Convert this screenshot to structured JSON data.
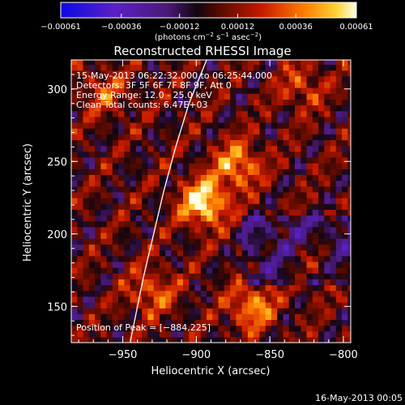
{
  "chart_data": {
    "type": "heatmap",
    "title": "Reconstructed RHESSI Image",
    "xlabel": "Heliocentric X (arcsec)",
    "ylabel": "Heliocentric Y (arcsec)",
    "xlim": [
      -985,
      -795
    ],
    "ylim": [
      125,
      320
    ],
    "x_ticks": [
      -950,
      -900,
      -850,
      -800
    ],
    "y_ticks": [
      150,
      200,
      250,
      300
    ],
    "x_tick_labels": [
      "−950",
      "−900",
      "−850",
      "−800"
    ],
    "y_tick_labels": [
      "150",
      "200",
      "250",
      "300"
    ],
    "colorbar": {
      "range": [
        -0.00061,
        0.00061
      ],
      "ticks": [
        -0.00061,
        -0.00036,
        -0.00012,
        0.00012,
        0.00036,
        0.00061
      ],
      "tick_labels": [
        "−0.00061",
        "−0.00036",
        "−0.00012",
        "0.00012",
        "0.00036",
        "0.00061"
      ],
      "unit_prefix": "(photons cm",
      "unit_exp1": "−2",
      "unit_mid": " s",
      "unit_exp2": "−1",
      "unit_mid2": " asec",
      "unit_exp3": "−2",
      "unit_suffix": ")"
    },
    "annotations": [
      "15‑May‑2013 06:22:32.000 to 06:25:44.000",
      "Detectors: 3F 5F 6F 7F 8F 9F, Att 0",
      "Energy Range: 12.0 ‑ 25.0 keV",
      "Clean    Total counts: 6.47E+03"
    ],
    "peak_label": "Position of Peak = [−884,225]",
    "peak": {
      "x": -884,
      "y": 225
    },
    "hot_spots": [
      {
        "x": -895,
        "y": 222,
        "value": 0.00061
      },
      {
        "x": -872,
        "y": 248,
        "value": 0.00042
      },
      {
        "x": -862,
        "y": 150,
        "value": 0.0004
      },
      {
        "x": -962,
        "y": 298,
        "value": 0.00024
      },
      {
        "x": -828,
        "y": 302,
        "value": 0.00024
      },
      {
        "x": -930,
        "y": 160,
        "value": 0.0003
      },
      {
        "x": -820,
        "y": 178,
        "value": 0.00022
      }
    ],
    "limb_curve": [
      {
        "x": -893,
        "y": 320
      },
      {
        "x": -905,
        "y": 290
      },
      {
        "x": -914,
        "y": 260
      },
      {
        "x": -922,
        "y": 230
      },
      {
        "x": -929,
        "y": 200
      },
      {
        "x": -936,
        "y": 170
      },
      {
        "x": -942,
        "y": 140
      },
      {
        "x": -945,
        "y": 125
      }
    ]
  },
  "footer": {
    "date": "16‑May‑2013 00:05"
  }
}
